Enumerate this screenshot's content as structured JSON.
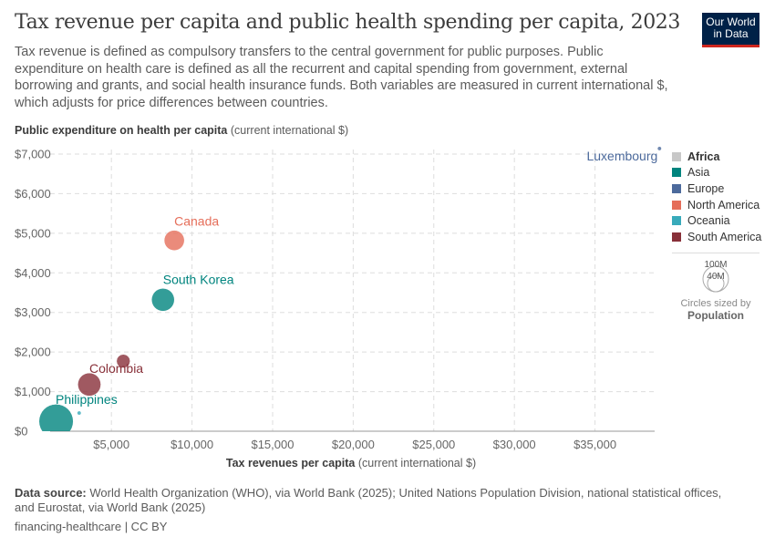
{
  "title": "Tax revenue per capita and public health spending per capita, 2023",
  "subtitle": "Tax revenue is defined as compulsory transfers to the central government for public purposes. Public expenditure on health care is defined as all the recurrent and capital spending from government, external borrowing and grants, and social health insurance funds. Both variables are measured in current international $, which adjusts for price differences between countries.",
  "logo": {
    "line1": "Our World",
    "line2": "in Data"
  },
  "footer": {
    "source_label": "Data source:",
    "source": "World Health Organization (WHO), via World Bank (2025); United Nations Population Division, national statistical offices, and Eurostat, via World Bank (2025)",
    "slug": "financing-healthcare | CC BY"
  },
  "size_legend": {
    "big": "100M",
    "small": "40M",
    "caption": "Circles sized by",
    "variable": "Population"
  },
  "chart_data": {
    "type": "scatter",
    "title": "Tax revenue per capita and public health spending per capita, 2023",
    "ylabel_bold": "Public expenditure on health per capita",
    "ylabel_unit": "(current international $)",
    "xlabel_bold": "Tax revenues per capita",
    "xlabel_unit": "(current international $)",
    "xlim": [
      1200,
      38700
    ],
    "ylim": [
      0,
      7000
    ],
    "xticks": [
      5000,
      10000,
      15000,
      20000,
      25000,
      30000,
      35000
    ],
    "xtick_labels": [
      "$5,000",
      "$10,000",
      "$15,000",
      "$20,000",
      "$25,000",
      "$30,000",
      "$35,000"
    ],
    "yticks": [
      0,
      1000,
      2000,
      3000,
      4000,
      5000,
      6000,
      7000
    ],
    "ytick_labels": [
      "$0",
      "$1,000",
      "$2,000",
      "$3,000",
      "$4,000",
      "$5,000",
      "$6,000",
      "$7,000"
    ],
    "legend": [
      {
        "name": "Africa",
        "color": "#c8c8c8"
      },
      {
        "name": "Asia",
        "color": "#00847e"
      },
      {
        "name": "Europe",
        "color": "#4c6a9c"
      },
      {
        "name": "North America",
        "color": "#e56e5a"
      },
      {
        "name": "Oceania",
        "color": "#38aaba"
      },
      {
        "name": "South America",
        "color": "#883039"
      }
    ],
    "legend_position": "right",
    "points": [
      {
        "label": "Luxembourg",
        "x": 39000,
        "y": 7140,
        "pop": 0.67,
        "region": "Europe"
      },
      {
        "label": "Canada",
        "x": 8900,
        "y": 4820,
        "pop": 40,
        "region": "North America"
      },
      {
        "label": "South Korea",
        "x": 8200,
        "y": 3320,
        "pop": 51,
        "region": "Asia"
      },
      {
        "label": "Colombia",
        "x": 3630,
        "y": 1180,
        "pop": 52,
        "region": "South America"
      },
      {
        "label": "",
        "x": 5740,
        "y": 1770,
        "pop": 18,
        "region": "South America"
      },
      {
        "label": "",
        "x": 3000,
        "y": 460,
        "pop": 0.9,
        "region": "Oceania"
      },
      {
        "label": "Philippines",
        "x": 1570,
        "y": 250,
        "pop": 115,
        "region": "Asia"
      }
    ]
  }
}
